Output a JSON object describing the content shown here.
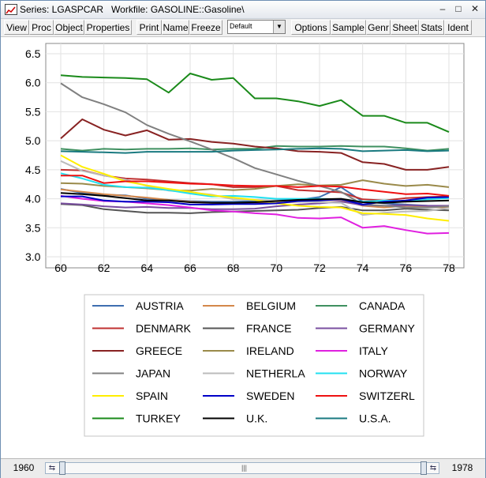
{
  "window": {
    "title": "Series: LGASPCAR   Workfile: GASOLINE::Gasoline\\"
  },
  "titlebar": {
    "minimize": "–",
    "maximize": "□",
    "close": "✕"
  },
  "toolbar": {
    "buttons": [
      "View",
      "Proc",
      "Object",
      "Properties",
      "Print",
      "Name",
      "Freeze",
      "Options",
      "Sample",
      "Genr",
      "Sheet",
      "Stats",
      "Ident"
    ],
    "combo_value": "Default"
  },
  "chart_data": {
    "type": "line",
    "x": [
      60,
      61,
      62,
      63,
      64,
      65,
      66,
      67,
      68,
      69,
      70,
      71,
      72,
      73,
      74,
      75,
      76,
      77,
      78
    ],
    "xticks": [
      "60",
      "62",
      "64",
      "66",
      "68",
      "70",
      "72",
      "74",
      "76",
      "78"
    ],
    "yticks": [
      "3.0",
      "3.5",
      "4.0",
      "4.5",
      "5.0",
      "5.5",
      "6.0",
      "6.5"
    ],
    "ylim": [
      3.0,
      6.5
    ],
    "xlim": [
      60,
      78
    ],
    "grid": true,
    "legend_position": "bottom",
    "series": [
      {
        "name": "AUSTRIA",
        "color": "#3e6fb0",
        "values": [
          4.17,
          4.1,
          4.07,
          4.06,
          4.0,
          3.98,
          3.96,
          3.95,
          3.95,
          3.96,
          3.97,
          3.98,
          4.03,
          4.2,
          3.95,
          3.92,
          3.9,
          3.88,
          3.87
        ]
      },
      {
        "name": "BELGIUM",
        "color": "#d4884a",
        "values": [
          4.16,
          4.12,
          4.08,
          4.05,
          4.02,
          3.98,
          3.95,
          3.93,
          3.92,
          3.92,
          3.93,
          3.95,
          3.97,
          3.98,
          3.88,
          3.85,
          3.88,
          3.86,
          3.85
        ]
      },
      {
        "name": "CANADA",
        "color": "#3f9060",
        "values": [
          4.86,
          4.83,
          4.86,
          4.85,
          4.86,
          4.86,
          4.87,
          4.85,
          4.86,
          4.86,
          4.91,
          4.9,
          4.9,
          4.91,
          4.9,
          4.9,
          4.87,
          4.83,
          4.86
        ]
      },
      {
        "name": "DENMARK",
        "color": "#c03030",
        "values": [
          4.5,
          4.49,
          4.4,
          4.35,
          4.33,
          4.3,
          4.27,
          4.25,
          4.2,
          4.2,
          4.22,
          4.15,
          4.13,
          4.11,
          3.99,
          3.97,
          4.01,
          4.03,
          4.04
        ]
      },
      {
        "name": "FRANCE",
        "color": "#555555",
        "values": [
          3.91,
          3.89,
          3.82,
          3.79,
          3.76,
          3.76,
          3.75,
          3.77,
          3.78,
          3.79,
          3.8,
          3.81,
          3.84,
          3.86,
          3.8,
          3.8,
          3.83,
          3.81,
          3.8
        ]
      },
      {
        "name": "GERMANY",
        "color": "#7a4fa0",
        "values": [
          3.92,
          3.9,
          3.87,
          3.85,
          3.86,
          3.84,
          3.84,
          3.82,
          3.82,
          3.83,
          3.87,
          3.9,
          3.92,
          3.95,
          3.89,
          3.88,
          3.89,
          3.88,
          3.88
        ]
      },
      {
        "name": "GREECE",
        "color": "#882222",
        "values": [
          5.04,
          5.37,
          5.19,
          5.09,
          5.18,
          5.02,
          5.03,
          4.98,
          4.95,
          4.9,
          4.87,
          4.82,
          4.81,
          4.79,
          4.63,
          4.6,
          4.5,
          4.5,
          4.55
        ]
      },
      {
        "name": "IRELAND",
        "color": "#9a8a4a",
        "values": [
          4.27,
          4.26,
          4.22,
          4.2,
          4.18,
          4.15,
          4.14,
          4.17,
          4.15,
          4.17,
          4.22,
          4.25,
          4.23,
          4.24,
          4.32,
          4.26,
          4.22,
          4.24,
          4.2
        ]
      },
      {
        "name": "ITALY",
        "color": "#e020e0",
        "values": [
          4.05,
          4.0,
          3.96,
          3.95,
          3.92,
          3.89,
          3.85,
          3.8,
          3.78,
          3.75,
          3.73,
          3.67,
          3.66,
          3.68,
          3.5,
          3.53,
          3.46,
          3.4,
          3.41
        ]
      },
      {
        "name": "JAPAN",
        "color": "#808080",
        "values": [
          5.99,
          5.75,
          5.63,
          5.49,
          5.27,
          5.12,
          4.99,
          4.85,
          4.7,
          4.53,
          4.42,
          4.31,
          4.22,
          4.12,
          3.9,
          3.88,
          3.85,
          3.85,
          3.87
        ]
      },
      {
        "name": "NETHERLA",
        "color": "#bbbbbb",
        "values": [
          4.65,
          4.48,
          4.4,
          4.33,
          4.22,
          4.14,
          4.11,
          4.07,
          3.99,
          3.98,
          3.97,
          3.95,
          3.94,
          3.93,
          3.72,
          3.76,
          3.78,
          3.79,
          3.84
        ]
      },
      {
        "name": "NORWAY",
        "color": "#22e0f0",
        "values": [
          4.44,
          4.35,
          4.24,
          4.2,
          4.19,
          4.15,
          4.09,
          4.04,
          4.05,
          4.03,
          4.0,
          4.0,
          4.0,
          3.99,
          3.95,
          3.97,
          3.96,
          3.99,
          4.01
        ]
      },
      {
        "name": "SPAIN",
        "color": "#ffee00",
        "values": [
          4.75,
          4.55,
          4.43,
          4.3,
          4.23,
          4.17,
          4.12,
          4.06,
          4.02,
          3.98,
          3.92,
          3.88,
          3.86,
          3.85,
          3.75,
          3.74,
          3.72,
          3.66,
          3.62
        ]
      },
      {
        "name": "SWEDEN",
        "color": "#0000c8",
        "values": [
          4.04,
          4.04,
          3.97,
          3.95,
          3.95,
          3.94,
          3.9,
          3.9,
          3.91,
          3.91,
          3.92,
          3.96,
          3.97,
          3.99,
          3.9,
          3.95,
          3.97,
          4.02,
          4.03
        ]
      },
      {
        "name": "SWITZERL",
        "color": "#ee1111",
        "values": [
          4.4,
          4.4,
          4.27,
          4.3,
          4.3,
          4.28,
          4.26,
          4.25,
          4.23,
          4.22,
          4.22,
          4.2,
          4.22,
          4.21,
          4.16,
          4.12,
          4.08,
          4.09,
          4.05
        ]
      },
      {
        "name": "TURKEY",
        "color": "#1a8a1a",
        "values": [
          6.13,
          6.1,
          6.09,
          6.08,
          6.06,
          5.83,
          6.16,
          6.05,
          6.08,
          5.73,
          5.73,
          5.68,
          5.6,
          5.7,
          5.43,
          5.43,
          5.31,
          5.31,
          5.15
        ]
      },
      {
        "name": "U.K.",
        "color": "#000000",
        "values": [
          4.1,
          4.08,
          4.05,
          4.01,
          3.97,
          3.97,
          3.94,
          3.93,
          3.93,
          3.94,
          3.96,
          3.98,
          3.99,
          4.0,
          3.94,
          3.93,
          3.95,
          3.96,
          3.97
        ]
      },
      {
        "name": "U.S.A.",
        "color": "#1a7a80",
        "values": [
          4.82,
          4.81,
          4.8,
          4.79,
          4.81,
          4.81,
          4.81,
          4.81,
          4.83,
          4.84,
          4.85,
          4.86,
          4.87,
          4.86,
          4.82,
          4.83,
          4.84,
          4.82,
          4.83
        ]
      }
    ]
  },
  "statusbar": {
    "start": "1960",
    "end": "1978",
    "left_arrows": "⇆",
    "right_arrows": "⇆",
    "grip": "|||"
  }
}
